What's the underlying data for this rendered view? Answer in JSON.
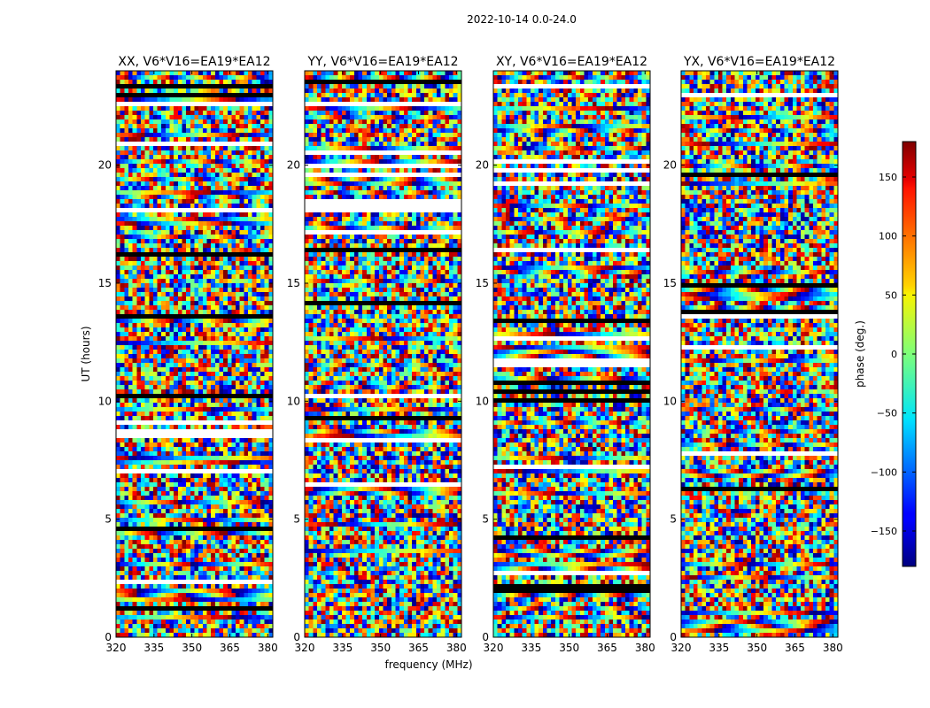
{
  "figure": {
    "suptitle": "2022-10-14 0.0-24.0"
  },
  "chart_data": [
    {
      "type": "heatmap",
      "title": "XX, V6*V16=EA19*EA12",
      "xlabel": "",
      "ylabel": "UT (hours)",
      "xlim": [
        320,
        382
      ],
      "ylim": [
        0,
        24
      ],
      "xticks": [
        320,
        335,
        350,
        365,
        380
      ],
      "yticks": [
        0,
        5,
        10,
        15,
        20
      ],
      "color_scale": "jet",
      "value_range": [
        -180,
        180
      ]
    },
    {
      "type": "heatmap",
      "title": "YY, V6*V16=EA19*EA12",
      "xlabel": "frequency (MHz)",
      "ylabel": "",
      "xlim": [
        320,
        382
      ],
      "ylim": [
        0,
        24
      ],
      "xticks": [
        320,
        335,
        350,
        365,
        380
      ],
      "yticks": [
        0,
        5,
        10,
        15,
        20
      ],
      "color_scale": "jet",
      "value_range": [
        -180,
        180
      ]
    },
    {
      "type": "heatmap",
      "title": "XY, V6*V16=EA19*EA12",
      "xlabel": "",
      "ylabel": "",
      "xlim": [
        320,
        382
      ],
      "ylim": [
        0,
        24
      ],
      "xticks": [
        320,
        335,
        350,
        365,
        380
      ],
      "yticks": [
        0,
        5,
        10,
        15,
        20
      ],
      "color_scale": "jet",
      "value_range": [
        -180,
        180
      ]
    },
    {
      "type": "heatmap",
      "title": "YX, V6*V16=EA19*EA12",
      "xlabel": "",
      "ylabel": "",
      "xlim": [
        320,
        382
      ],
      "ylim": [
        0,
        24
      ],
      "xticks": [
        320,
        335,
        350,
        365,
        380
      ],
      "yticks": [
        0,
        5,
        10,
        15,
        20
      ],
      "color_scale": "jet",
      "value_range": [
        -180,
        180
      ]
    }
  ],
  "colorbar": {
    "label": "phase (deg.)",
    "range": [
      -180,
      180
    ],
    "ticks": [
      -150,
      -100,
      -50,
      0,
      50,
      100,
      150
    ],
    "tick_labels": [
      "−150",
      "−100",
      "−50",
      "0",
      "50",
      "100",
      "150"
    ]
  }
}
